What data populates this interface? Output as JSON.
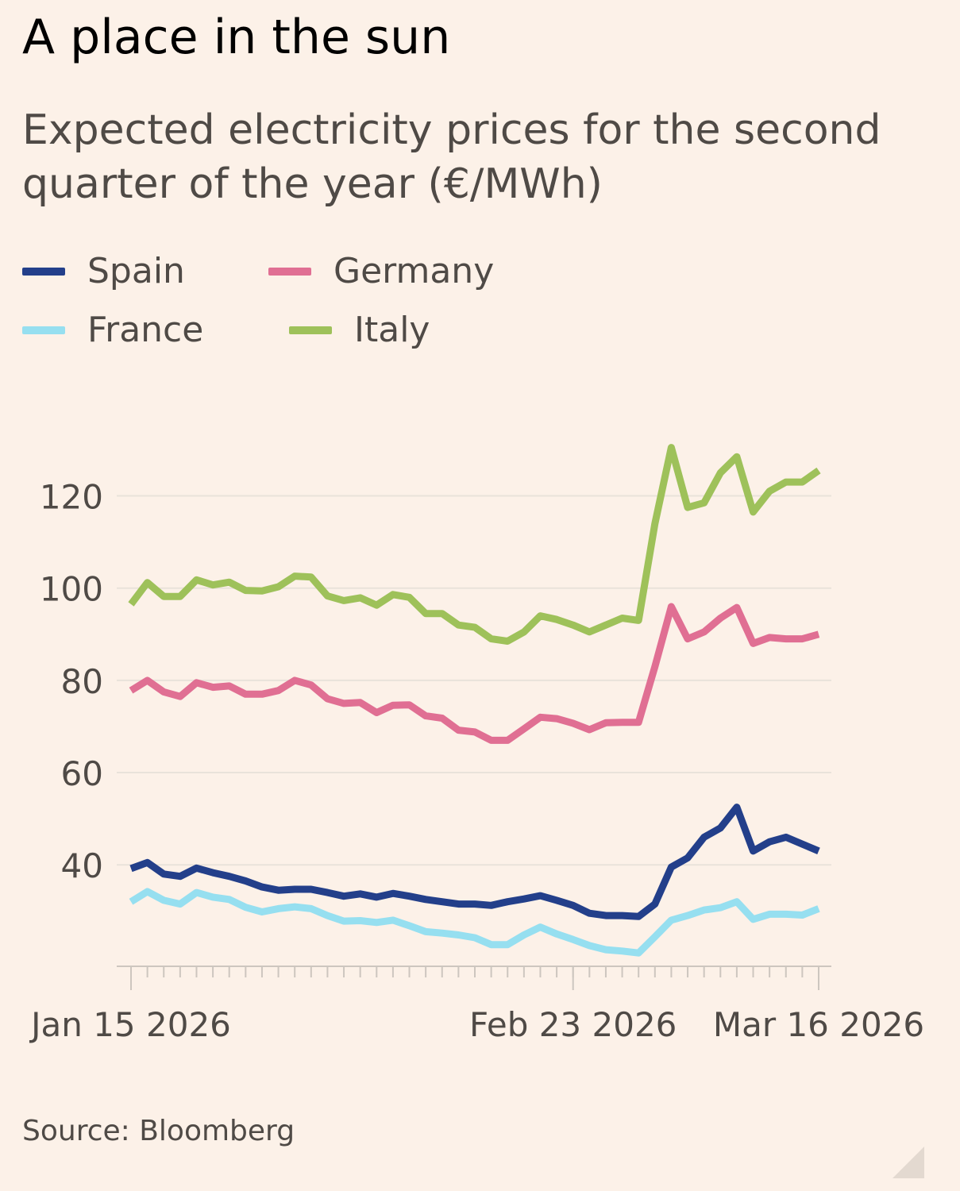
{
  "title": "A place in the sun",
  "subtitle": "Expected electricity prices for the second quarter of the year (€/MWh)",
  "source": "Source: Bloomberg",
  "colors": {
    "background": "#fcf1e8",
    "grid": "#e9e2da",
    "axis": "#cdc6bf",
    "text": "#4f4a46"
  },
  "legend": [
    {
      "name": "Spain",
      "color": "#233f8a"
    },
    {
      "name": "Germany",
      "color": "#e06f93"
    },
    {
      "name": "France",
      "color": "#96dff0"
    },
    {
      "name": "Italy",
      "color": "#9ec15a"
    }
  ],
  "chart_data": {
    "type": "line",
    "title": "A place in the sun",
    "subtitle": "Expected electricity prices for the second quarter of the year (€/MWh)",
    "xlabel": "",
    "ylabel": "€/MWh",
    "ylim": [
      18,
      138
    ],
    "yticks": [
      40,
      60,
      80,
      100,
      120
    ],
    "xtick_labels": [
      {
        "label": "Jan 15 2026",
        "index": 0
      },
      {
        "label": "Feb 23 2026",
        "index": 27
      },
      {
        "label": "Mar 16 2026",
        "index": 42
      }
    ],
    "x": [
      0,
      1,
      2,
      3,
      4,
      5,
      6,
      7,
      8,
      9,
      10,
      11,
      12,
      13,
      14,
      15,
      16,
      17,
      18,
      19,
      20,
      21,
      22,
      23,
      24,
      25,
      26,
      27,
      28,
      29,
      30,
      31,
      32,
      33,
      34,
      35,
      36,
      37,
      38,
      39,
      40,
      41,
      42
    ],
    "series": [
      {
        "name": "Italy",
        "color": "#9ec15a",
        "values": [
          96.5,
          101.2,
          98.2,
          98.2,
          101.8,
          100.7,
          101.3,
          99.5,
          99.4,
          100.3,
          102.6,
          102.4,
          98.3,
          97.3,
          97.9,
          96.3,
          98.6,
          98.0,
          94.5,
          94.5,
          92.0,
          91.5,
          89.0,
          88.5,
          90.5,
          94.0,
          93.2,
          92.0,
          90.5,
          92.0,
          93.5,
          93.0,
          114.0,
          130.5,
          117.5,
          118.5,
          125.0,
          128.5,
          116.5,
          121.0,
          123.0,
          123.0,
          125.5
        ]
      },
      {
        "name": "Germany",
        "color": "#e06f93",
        "values": [
          77.8,
          80.0,
          77.5,
          76.5,
          79.5,
          78.5,
          78.8,
          77.0,
          77.0,
          77.8,
          80.0,
          79.0,
          76.0,
          75.0,
          75.2,
          73.0,
          74.6,
          74.7,
          72.3,
          71.8,
          69.2,
          68.8,
          67.0,
          67.0,
          69.5,
          72.0,
          71.7,
          70.7,
          69.3,
          70.8,
          70.9,
          70.9,
          83.0,
          96.0,
          89.0,
          90.5,
          93.5,
          95.8,
          88.0,
          89.3,
          89.0,
          89.0,
          90.0
        ]
      },
      {
        "name": "Spain",
        "color": "#233f8a",
        "values": [
          39.2,
          40.5,
          38.0,
          37.5,
          39.3,
          38.3,
          37.5,
          36.5,
          35.2,
          34.5,
          34.7,
          34.7,
          34.0,
          33.2,
          33.7,
          33.0,
          33.8,
          33.2,
          32.5,
          32.0,
          31.5,
          31.5,
          31.2,
          32.0,
          32.6,
          33.3,
          32.3,
          31.2,
          29.5,
          29.0,
          29.0,
          28.8,
          31.5,
          39.5,
          41.5,
          46.0,
          48.0,
          52.5,
          43.0,
          45.0,
          46.0,
          44.5,
          43.0
        ]
      },
      {
        "name": "France",
        "color": "#96dff0",
        "values": [
          32.0,
          34.2,
          32.3,
          31.5,
          34.0,
          33.0,
          32.5,
          30.8,
          29.8,
          30.5,
          30.9,
          30.5,
          29.0,
          27.8,
          27.9,
          27.5,
          28.0,
          26.8,
          25.5,
          25.2,
          24.8,
          24.2,
          22.7,
          22.7,
          24.8,
          26.5,
          25.0,
          23.8,
          22.5,
          21.6,
          21.3,
          20.9,
          24.4,
          28.0,
          29.0,
          30.2,
          30.7,
          32.0,
          28.2,
          29.3,
          29.3,
          29.1,
          30.5
        ]
      }
    ]
  }
}
